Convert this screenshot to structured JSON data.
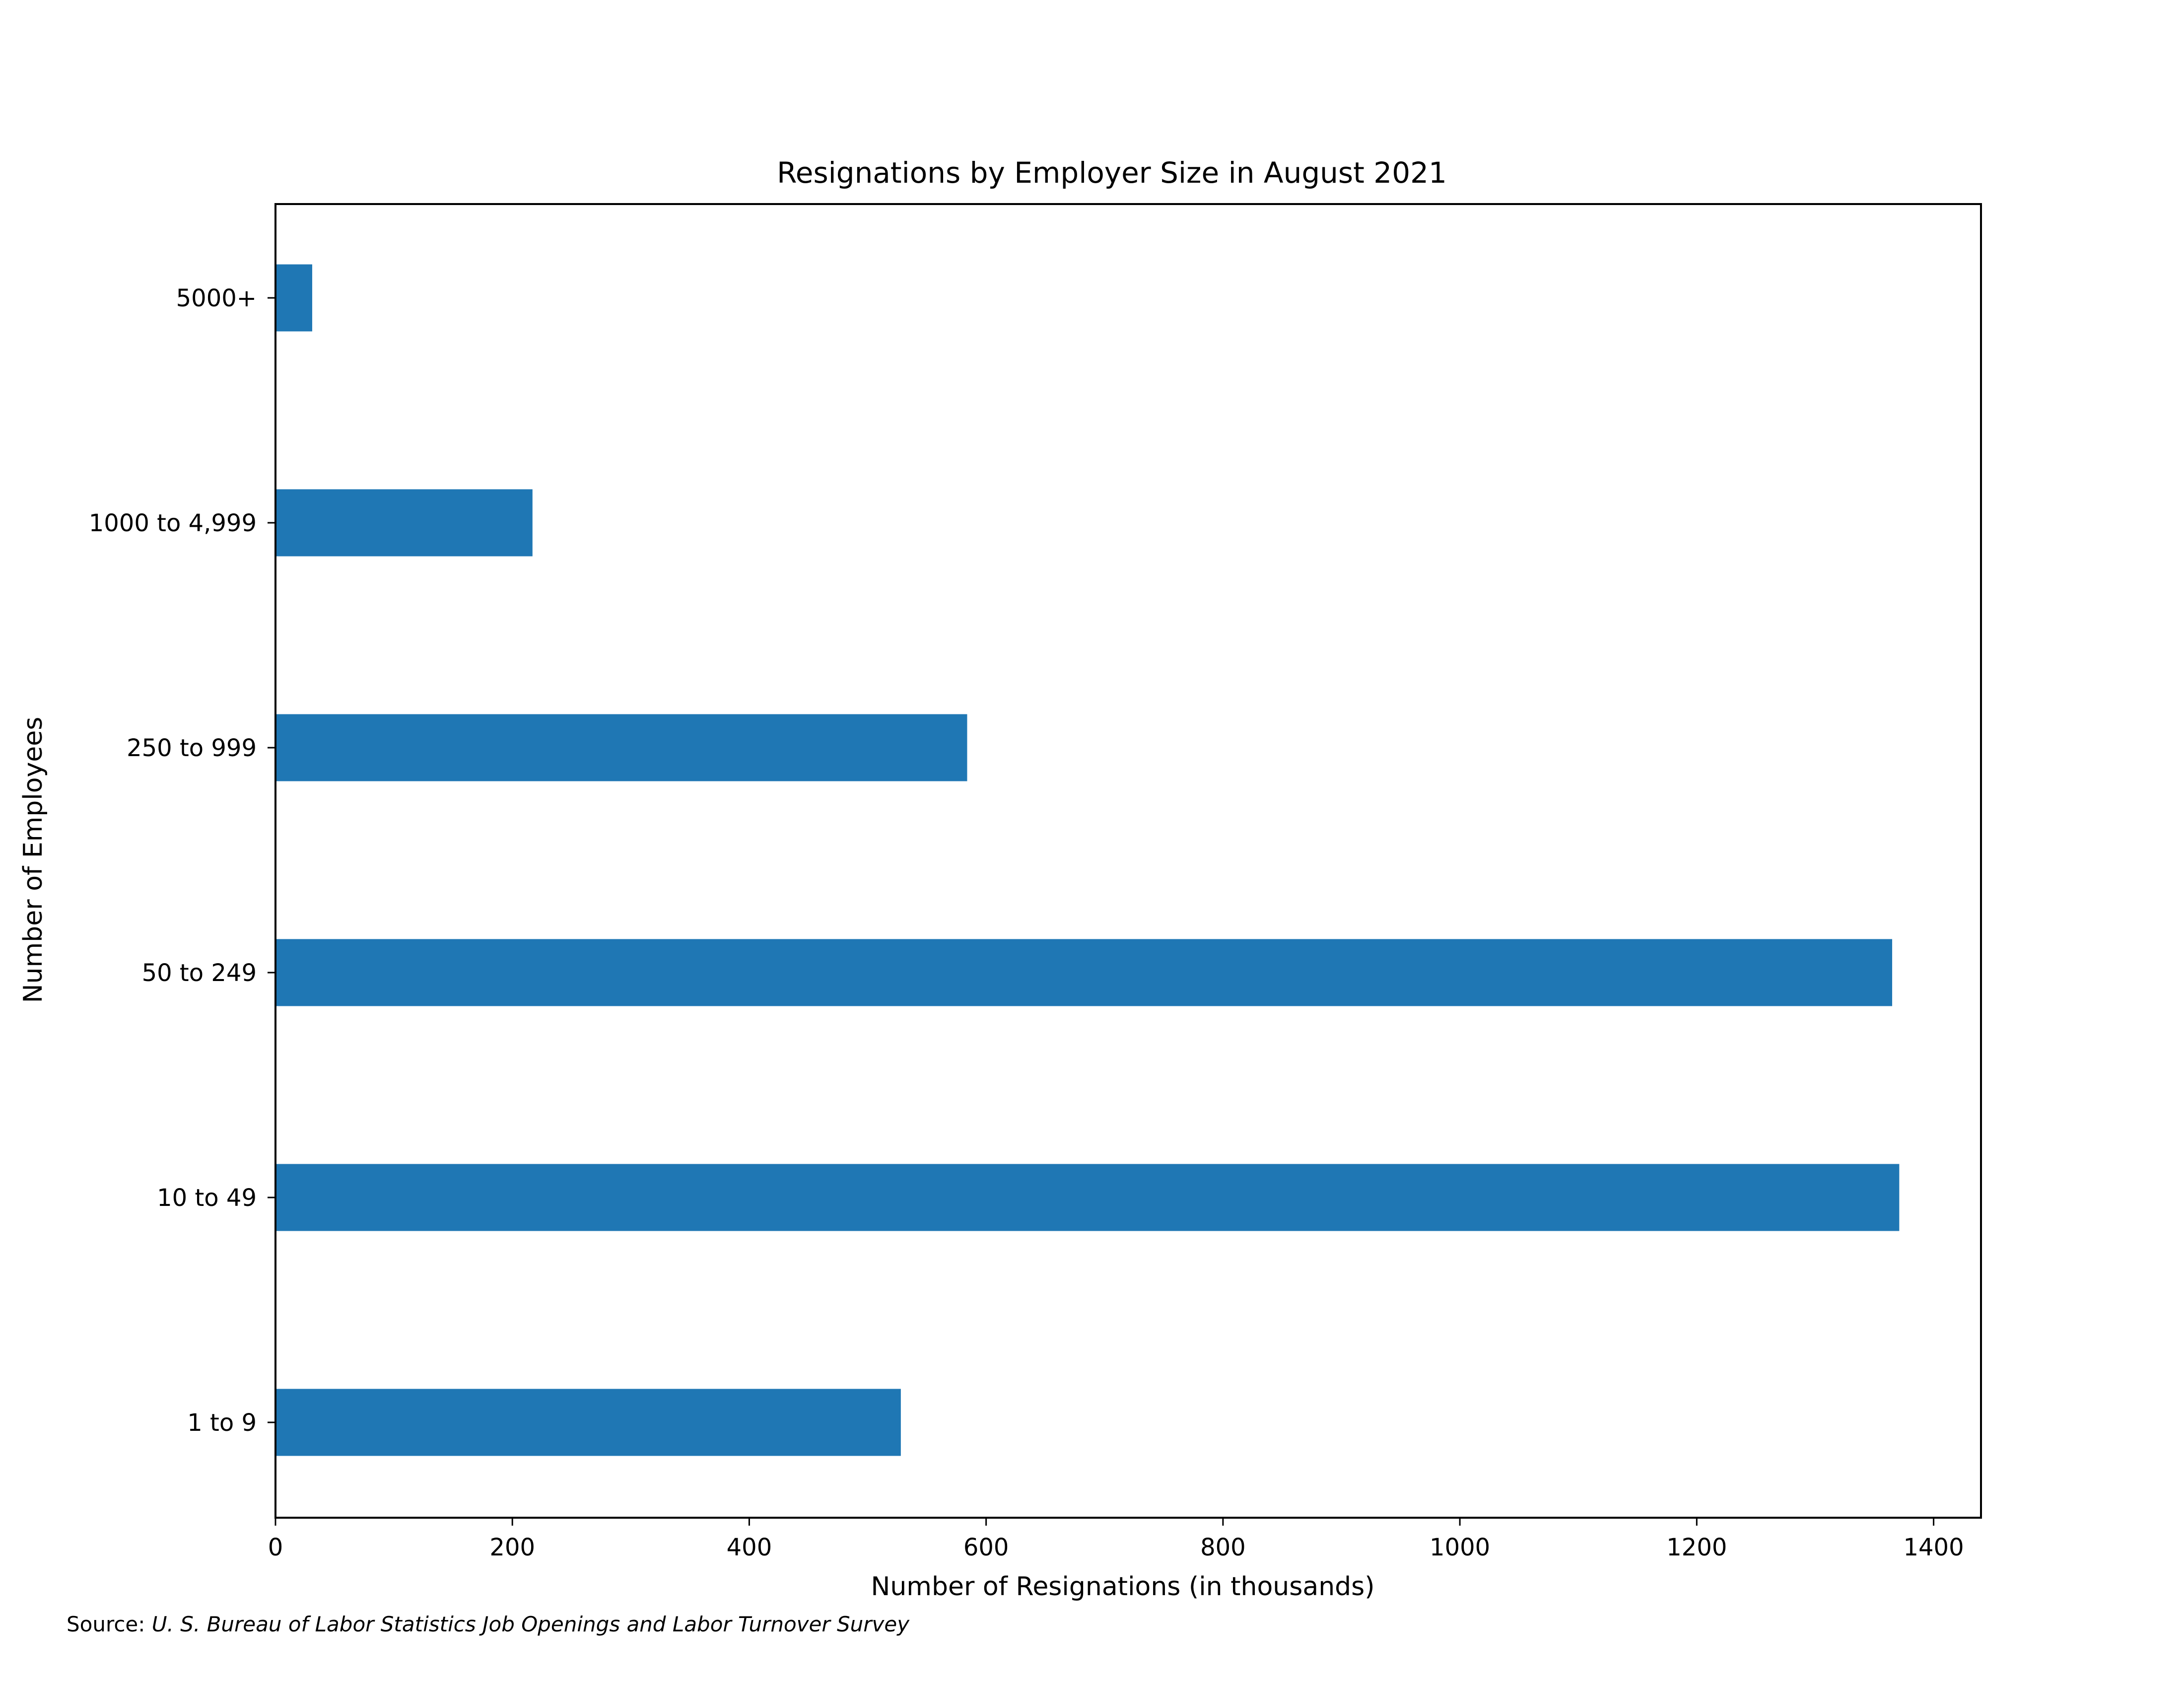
{
  "chart_data": {
    "type": "bar",
    "orientation": "horizontal",
    "title": "Resignations by Employer Size in August 2021",
    "xlabel": "Number of Resignations (in thousands)",
    "ylabel": "Number of Employees",
    "categories": [
      "1 to 9",
      "10 to 49",
      "50 to 249",
      "250 to 999",
      "1000 to 4,999",
      "5000+"
    ],
    "values": [
      528,
      1371,
      1365,
      584,
      217,
      31
    ],
    "xlim": [
      0,
      1440
    ],
    "xticks": [
      0,
      200,
      400,
      600,
      800,
      1000,
      1200,
      1400
    ],
    "grid": false,
    "bar_color": "#1f77b4",
    "source_prefix": "Source: ",
    "source_text": "U. S.  Bureau of Labor Statistics Job Openings and Labor Turnover Survey"
  }
}
